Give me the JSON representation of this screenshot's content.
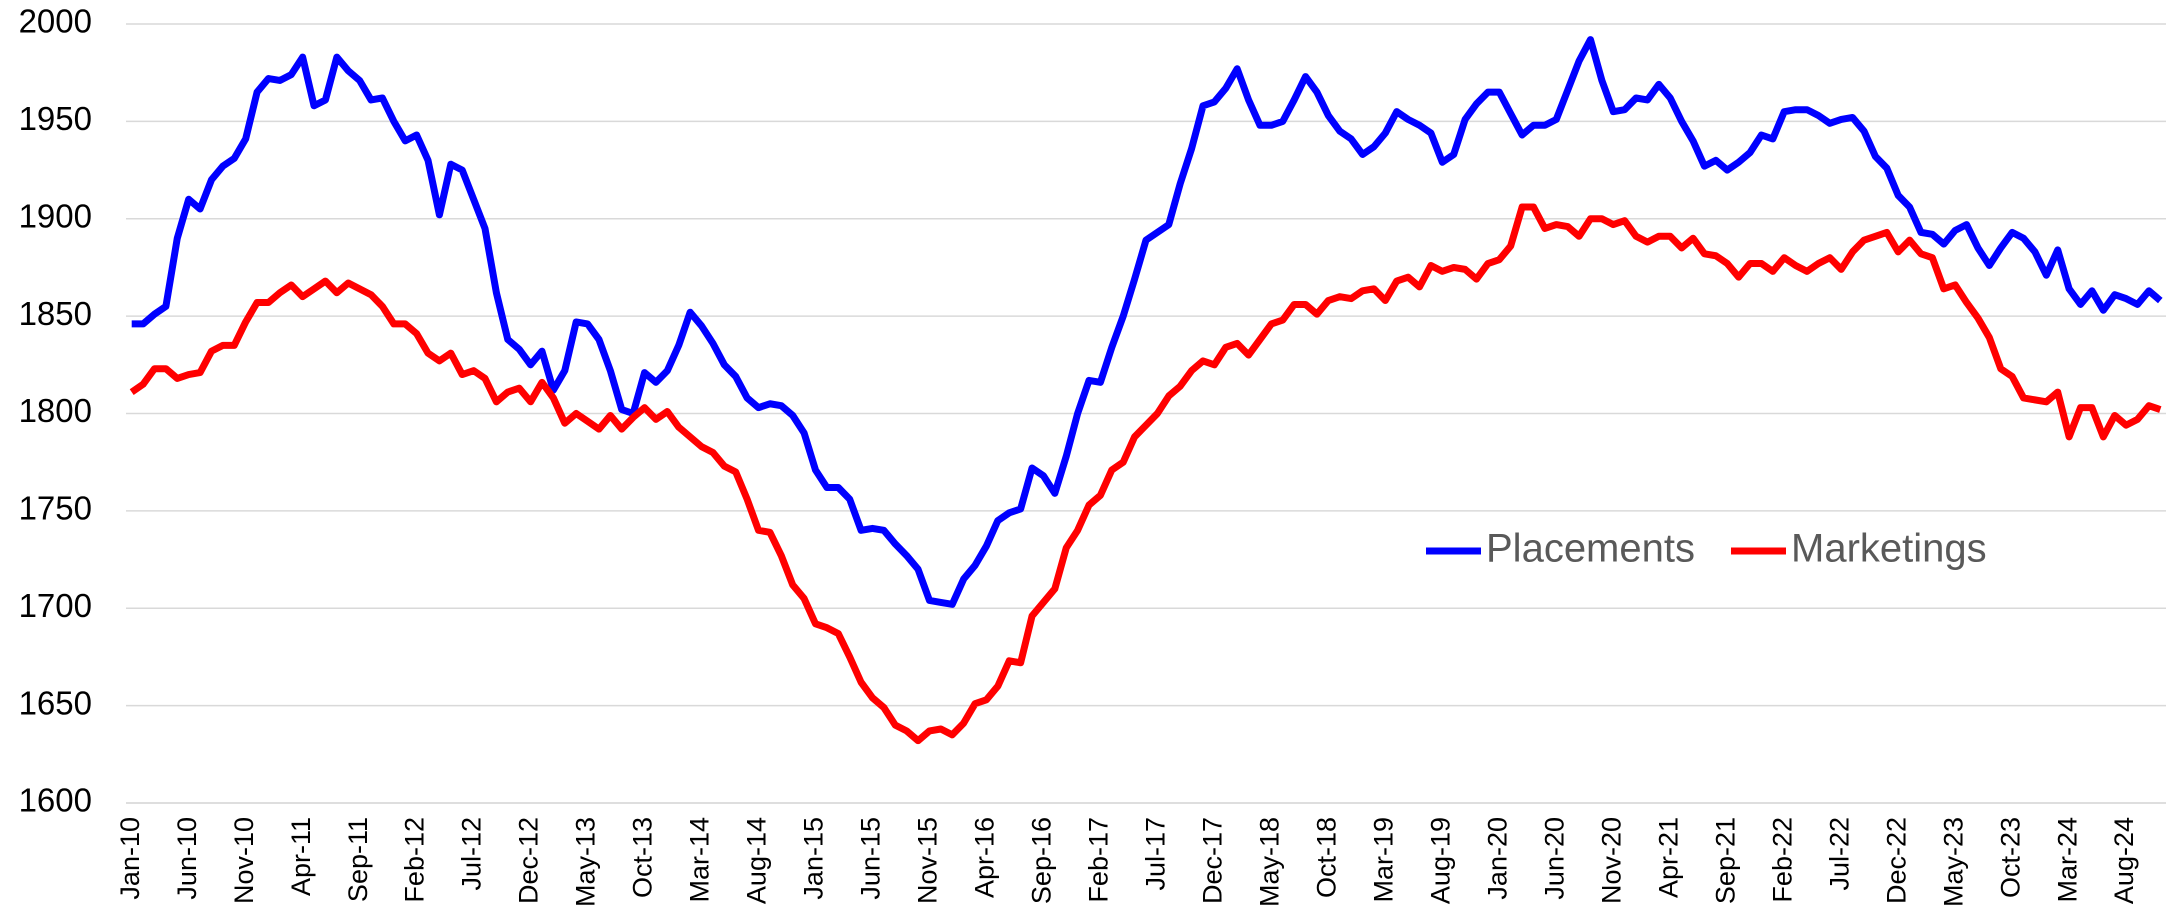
{
  "chart_data": {
    "type": "line",
    "categories": [
      "Jan-10",
      null,
      null,
      null,
      null,
      "Jun-10",
      null,
      null,
      null,
      null,
      "Nov-10",
      null,
      null,
      null,
      null,
      "Apr-11",
      null,
      null,
      null,
      null,
      "Sep-11",
      null,
      null,
      null,
      null,
      "Feb-12",
      null,
      null,
      null,
      null,
      "Jul-12",
      null,
      null,
      null,
      null,
      "Dec-12",
      null,
      null,
      null,
      null,
      "May-13",
      null,
      null,
      null,
      null,
      "Oct-13",
      null,
      null,
      null,
      null,
      "Mar-14",
      null,
      null,
      null,
      null,
      "Aug-14",
      null,
      null,
      null,
      null,
      "Jan-15",
      null,
      null,
      null,
      null,
      "Jun-15",
      null,
      null,
      null,
      null,
      "Nov-15",
      null,
      null,
      null,
      null,
      "Apr-16",
      null,
      null,
      null,
      null,
      "Sep-16",
      null,
      null,
      null,
      null,
      "Feb-17",
      null,
      null,
      null,
      null,
      "Jul-17",
      null,
      null,
      null,
      null,
      "Dec-17",
      null,
      null,
      null,
      null,
      "May-18",
      null,
      null,
      null,
      null,
      "Oct-18",
      null,
      null,
      null,
      null,
      "Mar-19",
      null,
      null,
      null,
      null,
      "Aug-19",
      null,
      null,
      null,
      null,
      "Jan-20",
      null,
      null,
      null,
      null,
      "Jun-20",
      null,
      null,
      null,
      null,
      "Nov-20",
      null,
      null,
      null,
      null,
      "Apr-21",
      null,
      null,
      null,
      null,
      "Sep-21",
      null,
      null,
      null,
      null,
      "Feb-22",
      null,
      null,
      null,
      null,
      "Jul-22",
      null,
      null,
      null,
      null,
      "Dec-22",
      null,
      null,
      null,
      null,
      "May-23",
      null,
      null,
      null,
      null,
      "Oct-23",
      null,
      null,
      null,
      null,
      "Mar-24",
      null,
      null,
      null,
      null,
      "Aug-24",
      null,
      null,
      null
    ],
    "series": [
      {
        "name": "Placements",
        "color": "#0000ff",
        "values": [
          1846,
          1846,
          1851,
          1855,
          1890,
          1910,
          1905,
          1920,
          1927,
          1931,
          1941,
          1965,
          1972,
          1971,
          1974,
          1983,
          1958,
          1961,
          1983,
          1976,
          1971,
          1961,
          1962,
          1950,
          1940,
          1943,
          1930,
          1902,
          1928,
          1925,
          1910,
          1895,
          1862,
          1838,
          1833,
          1825,
          1832,
          1812,
          1822,
          1847,
          1846,
          1838,
          1822,
          1802,
          1800,
          1821,
          1816,
          1822,
          1835,
          1852,
          1845,
          1836,
          1825,
          1819,
          1808,
          1803,
          1805,
          1804,
          1799,
          1790,
          1771,
          1762,
          1762,
          1756,
          1740,
          1741,
          1740,
          1733,
          1727,
          1720,
          1704,
          1703,
          1702,
          1715,
          1722,
          1732,
          1745,
          1749,
          1751,
          1772,
          1768,
          1759,
          1778,
          1800,
          1817,
          1816,
          1834,
          1850,
          1869,
          1889,
          1893,
          1897,
          1918,
          1936,
          1958,
          1960,
          1967,
          1977,
          1961,
          1948,
          1948,
          1950,
          1961,
          1973,
          1965,
          1953,
          1945,
          1941,
          1933,
          1937,
          1944,
          1955,
          1951,
          1948,
          1944,
          1929,
          1933,
          1951,
          1959,
          1965,
          1965,
          1954,
          1943,
          1948,
          1948,
          1951,
          1966,
          1981,
          1992,
          1971,
          1955,
          1956,
          1962,
          1961,
          1969,
          1962,
          1950,
          1940,
          1927,
          1930,
          1925,
          1929,
          1934,
          1943,
          1941,
          1955,
          1956,
          1956,
          1953,
          1949,
          1951,
          1952,
          1945,
          1932,
          1926,
          1912,
          1906,
          1893,
          1892,
          1887,
          1894,
          1897,
          1885,
          1876,
          1885,
          1893,
          1890,
          1883,
          1871,
          1884,
          1864,
          1856,
          1863,
          1853,
          1861,
          1859,
          1856,
          1863,
          1858
        ]
      },
      {
        "name": "Marketings",
        "color": "#ff0000",
        "values": [
          1811,
          1815,
          1823,
          1823,
          1818,
          1820,
          1821,
          1832,
          1835,
          1835,
          1847,
          1857,
          1857,
          1862,
          1866,
          1860,
          1864,
          1868,
          1862,
          1867,
          1864,
          1861,
          1855,
          1846,
          1846,
          1841,
          1831,
          1827,
          1831,
          1820,
          1822,
          1818,
          1806,
          1811,
          1813,
          1806,
          1816,
          1808,
          1795,
          1800,
          1796,
          1792,
          1799,
          1792,
          1798,
          1803,
          1797,
          1801,
          1793,
          1788,
          1783,
          1780,
          1773,
          1770,
          1756,
          1740,
          1739,
          1727,
          1712,
          1705,
          1692,
          1690,
          1687,
          1675,
          1662,
          1654,
          1649,
          1640,
          1637,
          1632,
          1637,
          1638,
          1635,
          1641,
          1651,
          1653,
          1660,
          1673,
          1672,
          1696,
          1703,
          1710,
          1731,
          1740,
          1753,
          1758,
          1771,
          1775,
          1788,
          1794,
          1800,
          1809,
          1814,
          1822,
          1827,
          1825,
          1834,
          1836,
          1830,
          1838,
          1846,
          1848,
          1856,
          1856,
          1851,
          1858,
          1860,
          1859,
          1863,
          1864,
          1858,
          1868,
          1870,
          1865,
          1876,
          1873,
          1875,
          1874,
          1869,
          1877,
          1879,
          1886,
          1906,
          1906,
          1895,
          1897,
          1896,
          1891,
          1900,
          1900,
          1897,
          1899,
          1891,
          1888,
          1891,
          1891,
          1885,
          1890,
          1882,
          1881,
          1877,
          1870,
          1877,
          1877,
          1873,
          1880,
          1876,
          1873,
          1877,
          1880,
          1874,
          1883,
          1889,
          1891,
          1893,
          1883,
          1889,
          1882,
          1880,
          1864,
          1866,
          1857,
          1849,
          1839,
          1823,
          1819,
          1808,
          1807,
          1806,
          1811,
          1788,
          1803,
          1803,
          1788,
          1799,
          1794,
          1797,
          1804,
          1802
        ]
      }
    ],
    "ylim": [
      1600,
      2000
    ],
    "yticks": [
      1600,
      1650,
      1700,
      1750,
      1800,
      1850,
      1900,
      1950,
      2000
    ],
    "grid": true
  }
}
